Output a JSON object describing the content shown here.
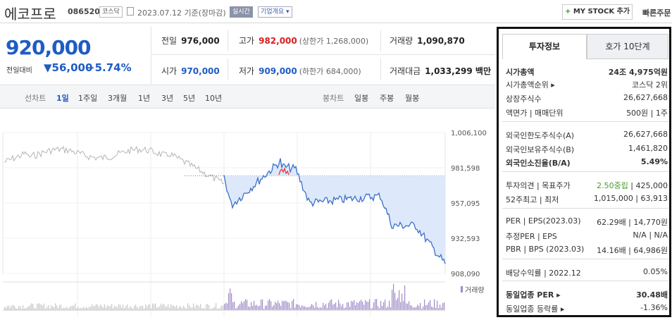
{
  "header": {
    "stock_name": "에코프로",
    "stock_code": "086520",
    "market": "코스닥",
    "date_text": "2023.07.12  기준(장마감)",
    "realtime_label": "실시간",
    "company_label": "기업개요 ▾",
    "mystock_label": "MY STOCK 추가",
    "quick_order_label": "빠른주문"
  },
  "price": {
    "current": "920,000",
    "change_label": "전일대비",
    "change_value": "▼56,000",
    "change_pct": "−5.74%"
  },
  "stats": {
    "prev_close_label": "전일",
    "prev_close": "976,000",
    "high_label": "고가",
    "high": "982,000",
    "high_limit": "(상한가 1,268,000)",
    "volume_label": "거래량",
    "volume": "1,090,870",
    "open_label": "시가",
    "open": "970,000",
    "low_label": "저가",
    "low": "909,000",
    "low_limit": "(하한가 684,000)",
    "amount_label": "거래대금",
    "amount": "1,033,299 백만"
  },
  "chart_tabs": {
    "line_group": "선차트",
    "items": [
      "1일",
      "1주일",
      "3개월",
      "1년",
      "3년",
      "5년",
      "10년"
    ],
    "candle_group": "봉차트",
    "candle_items": [
      "일봉",
      "주봉",
      "월봉"
    ]
  },
  "chart_data": {
    "type": "line",
    "yticks": [
      "1,006,100",
      "981,598",
      "957,095",
      "932,593",
      "908,090"
    ],
    "ylim": [
      908090,
      1006100
    ],
    "prev_close": 976000,
    "volume_label": "거래량",
    "colors": {
      "line": "#3b6fc9",
      "fill": "#dde9fa",
      "up": "#e23b3b",
      "gray": "#b5b5b5",
      "volume": "#a08bc8"
    }
  },
  "panel": {
    "tab_active": "투자정보",
    "tab_other": "호가 10단계",
    "rows": [
      {
        "l": "시가총액",
        "r": "24조 4,975억원",
        "bold": true
      },
      {
        "l": "시가총액순위 ▸",
        "r": "코스닥 2위"
      },
      {
        "l": "상장주식수",
        "r": "26,627,668"
      },
      {
        "l": "액면가 | 매매단위",
        "r": "500원 | 1주"
      },
      {
        "l": "외국인한도주식수(A)",
        "r": "26,627,668"
      },
      {
        "l": "외국인보유주식수(B)",
        "r": "1,461,820"
      },
      {
        "l": "외국인소진율(B/A)",
        "r": "5.49%",
        "bold": true
      },
      {
        "l": "투자의견 | 목표주가",
        "r": "2.50중립 | 425,000"
      },
      {
        "l": "52주최고 | 최저",
        "r": "1,015,000 | 63,913"
      },
      {
        "l": "PER | EPS(2023.03)",
        "r": "62.29배 | 14,770원"
      },
      {
        "l": "추정PER | EPS",
        "r": "N/A | N/A"
      },
      {
        "l": "PBR | BPS (2023.03)",
        "r": "14.16배 | 64,986원"
      },
      {
        "l": "배당수익률 | 2022.12",
        "r": "0.05%"
      },
      {
        "l": "동일업종 PER ▸",
        "r": "30.48배",
        "bold": true
      },
      {
        "l": "동일업종 등락률 ▸",
        "r": "-1.36%"
      }
    ]
  }
}
